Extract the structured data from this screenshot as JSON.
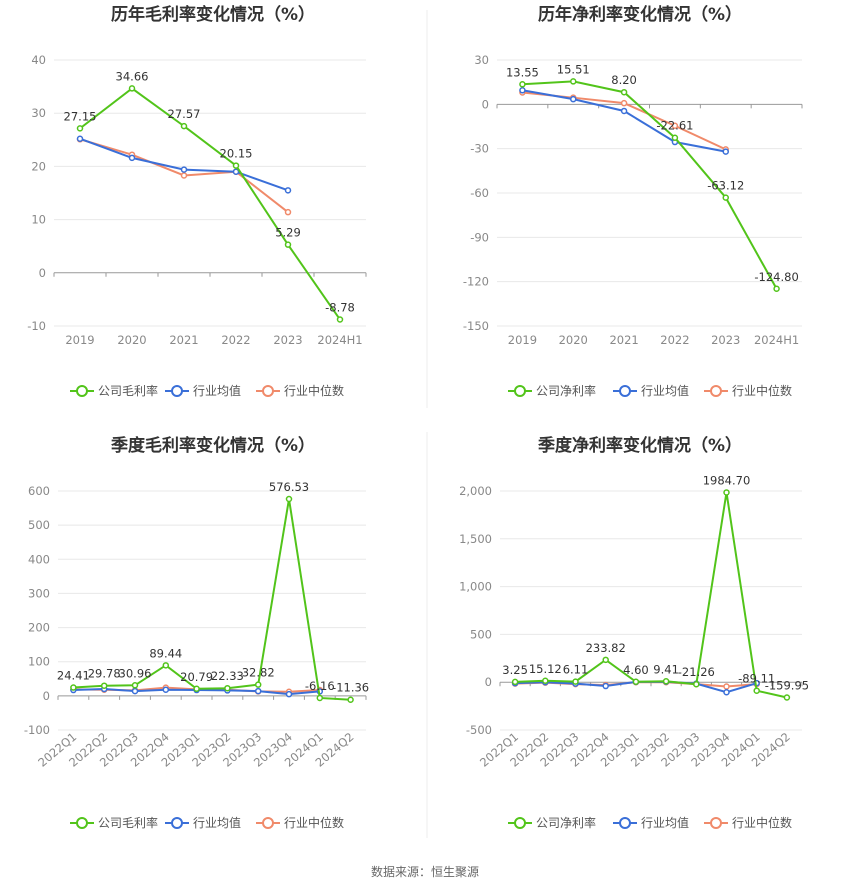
{
  "colors": {
    "company": "#52c41a",
    "avg": "#3a6fd8",
    "median": "#f08a6a",
    "grid": "#e8e8e8",
    "axis": "#999999"
  },
  "source": "数据来源：恒生聚源",
  "chart_data": [
    {
      "type": "line",
      "title": "历年毛利率变化情况（%）",
      "categories": [
        "2019",
        "2020",
        "2021",
        "2022",
        "2023",
        "2024H1"
      ],
      "ylim": [
        -10,
        40
      ],
      "yticks": [
        -10,
        0,
        10,
        20,
        30,
        40
      ],
      "series": [
        {
          "name": "公司毛利率",
          "key": "company",
          "values": [
            27.15,
            34.66,
            27.57,
            20.15,
            5.29,
            -8.78
          ],
          "labels": [
            "27.15",
            "34.66",
            "27.57",
            "20.15",
            "5.29",
            "-8.78"
          ]
        },
        {
          "name": "行业均值",
          "key": "avg",
          "values": [
            25.2,
            21.6,
            19.4,
            19.0,
            15.5,
            null
          ]
        },
        {
          "name": "行业中位数",
          "key": "median",
          "values": [
            25.1,
            22.2,
            18.3,
            19.0,
            11.4,
            null
          ]
        }
      ],
      "grid": true,
      "legend": "bottom"
    },
    {
      "type": "line",
      "title": "历年净利率变化情况（%）",
      "categories": [
        "2019",
        "2020",
        "2021",
        "2022",
        "2023",
        "2024H1"
      ],
      "ylim": [
        -150,
        30
      ],
      "yticks": [
        -150,
        -120,
        -90,
        -60,
        -30,
        0,
        30
      ],
      "series": [
        {
          "name": "公司净利率",
          "key": "company",
          "values": [
            13.55,
            15.51,
            8.2,
            -22.61,
            -63.12,
            -124.8
          ],
          "labels": [
            "13.55",
            "15.51",
            "8.20",
            "-22.61",
            "-63.12",
            "-124.80"
          ]
        },
        {
          "name": "行业均值",
          "key": "avg",
          "values": [
            9.5,
            3.5,
            -4.5,
            -25.5,
            -32.0,
            null
          ]
        },
        {
          "name": "行业中位数",
          "key": "median",
          "values": [
            8.0,
            4.5,
            0.8,
            -14.5,
            -30.5,
            null
          ]
        }
      ],
      "grid": true,
      "legend": "bottom"
    },
    {
      "type": "line",
      "title": "季度毛利率变化情况（%）",
      "categories": [
        "2022Q1",
        "2022Q2",
        "2022Q3",
        "2022Q4",
        "2023Q1",
        "2023Q2",
        "2023Q3",
        "2023Q4",
        "2024Q1",
        "2024Q2"
      ],
      "ylim": [
        -100,
        600
      ],
      "yticks": [
        -100,
        0,
        100,
        200,
        300,
        400,
        500,
        600
      ],
      "series": [
        {
          "name": "公司毛利率",
          "key": "company",
          "values": [
            24.41,
            29.78,
            30.96,
            89.44,
            20.79,
            22.33,
            32.82,
            576.53,
            -6.16,
            -11.36
          ],
          "labels": [
            "24.41",
            "29.78",
            "30.96",
            "89.44",
            "20.79",
            "22.33",
            "32.82",
            "576.53",
            "-6.16",
            "-11.36"
          ]
        },
        {
          "name": "行业均值",
          "key": "avg",
          "values": [
            17,
            20,
            14,
            18,
            17,
            16,
            14,
            5,
            13,
            null
          ]
        },
        {
          "name": "行业中位数",
          "key": "median",
          "values": [
            19,
            18,
            16,
            24,
            19,
            18,
            13,
            12,
            17,
            null
          ]
        }
      ],
      "grid": true,
      "legend": "bottom"
    },
    {
      "type": "line",
      "title": "季度净利率变化情况（%）",
      "categories": [
        "2022Q1",
        "2022Q2",
        "2022Q3",
        "2022Q4",
        "2023Q1",
        "2023Q2",
        "2023Q3",
        "2023Q4",
        "2024Q1",
        "2024Q2"
      ],
      "ylim": [
        -500,
        2000
      ],
      "yticks": [
        -500,
        0,
        500,
        1000,
        1500,
        2000
      ],
      "ytick_labels": [
        "-500",
        "0",
        "500",
        "1,000",
        "1,500",
        "2,000"
      ],
      "series": [
        {
          "name": "公司净利率",
          "key": "company",
          "values": [
            3.25,
            15.12,
            6.11,
            233.82,
            4.6,
            9.41,
            -21.26,
            1984.7,
            -89.11,
            -159.95
          ],
          "labels": [
            "3.25",
            "15.12",
            "6.11",
            "233.82",
            "4.60",
            "9.41",
            "-21.26",
            "1984.70",
            "-89.11",
            "-159.95"
          ]
        },
        {
          "name": "行业均值",
          "key": "avg",
          "values": [
            -10,
            0,
            -15,
            -40,
            3,
            5,
            -15,
            -105,
            -10,
            null
          ]
        },
        {
          "name": "行业中位数",
          "key": "median",
          "values": [
            -15,
            -5,
            -20,
            -30,
            0,
            0,
            -20,
            -45,
            -20,
            null
          ]
        }
      ],
      "grid": true,
      "legend": "bottom"
    }
  ]
}
